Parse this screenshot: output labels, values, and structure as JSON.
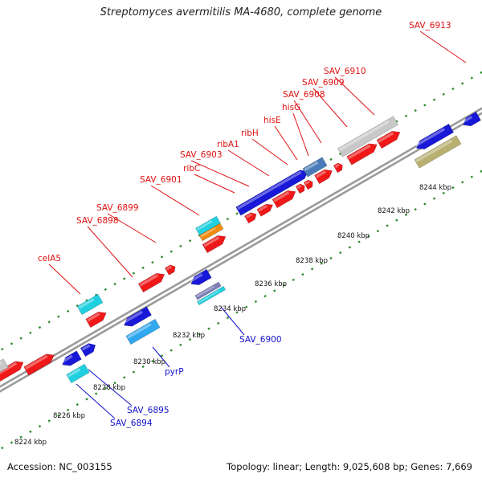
{
  "header": {
    "title": "Streptomyces avermitilis MA-4680, complete genome"
  },
  "footer": {
    "accession": "Accession: NC_003155",
    "stats": "Topology: linear; Length: 9,025,608 bp; Genes: 7,669"
  },
  "colors": {
    "red": "#f01818",
    "blue": "#1818d8",
    "cyan": "#20d0e0",
    "light_blue": "#30a8f0",
    "orange": "#f08c10",
    "gray": "#c8c8c8",
    "olive": "#b8b070",
    "steel": "#4a7ab8",
    "purple": "#8080b8",
    "backbone": "#9a9a9a",
    "dots": "#2a8a2a",
    "label_red": "#e01010",
    "label_blue": "#1010cc"
  },
  "ticks": [
    "8224 kbp",
    "8226 kbp",
    "8228 kbp",
    "8230 kbp",
    "8232 kbp",
    "8234 kbp",
    "8236 kbp",
    "8238 kbp",
    "8240 kbp",
    "8242 kbp",
    "8244 kbp"
  ],
  "genes_top": [
    "celA5",
    "SAV_6898",
    "SAV_6899",
    "SAV_6901",
    "ribC",
    "SAV_6903",
    "ribA1",
    "ribH",
    "hisE",
    "hisG",
    "SAV_6908",
    "SAV_6909",
    "SAV_6910",
    "SAV_6913"
  ],
  "genes_bottom": [
    "SAV_6894",
    "SAV_6895",
    "pyrP",
    "SAV_6900"
  ]
}
